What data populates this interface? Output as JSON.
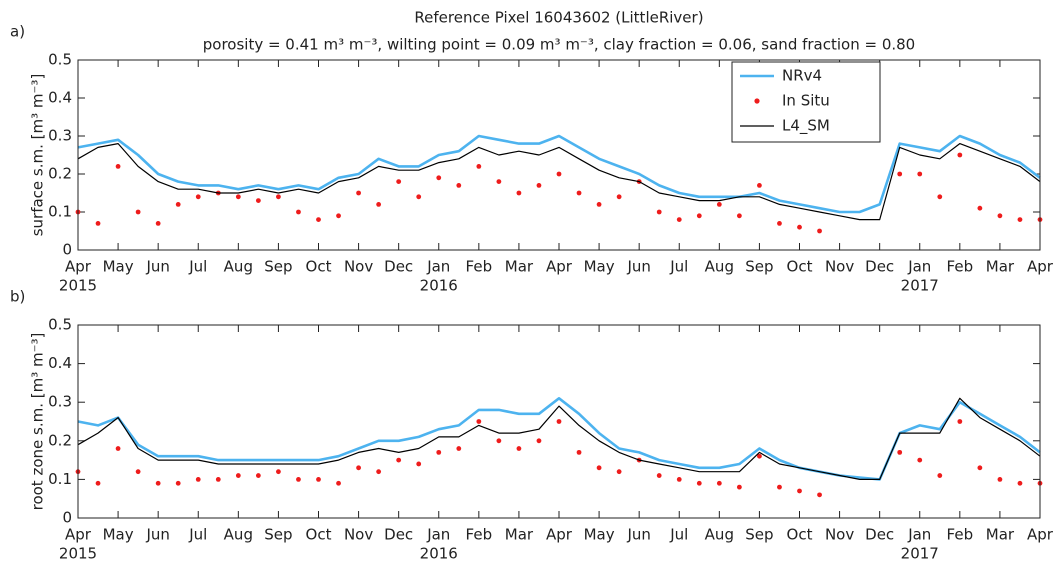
{
  "chart_data": [
    {
      "type": "line",
      "panel_label": "a)",
      "title": "Reference Pixel 16043602 (LittleRiver)",
      "subtitle": "porosity = 0.41 m³ m⁻³, wilting point = 0.09 m³ m⁻³, clay fraction = 0.06, sand fraction = 0.80",
      "y_label": "surface s.m. [m³ m⁻³]",
      "legend": "upper right",
      "x": [
        0,
        0.5,
        1,
        1.5,
        2,
        2.5,
        3,
        3.5,
        4,
        4.5,
        5,
        5.5,
        6,
        6.5,
        7,
        7.5,
        8,
        8.5,
        9,
        9.5,
        10,
        10.5,
        11,
        11.5,
        12,
        12.5,
        13,
        13.5,
        14,
        14.5,
        15,
        15.5,
        16,
        16.5,
        17,
        17.5,
        18,
        18.5,
        19,
        19.5,
        20,
        20.5,
        21,
        21.5,
        22,
        22.5,
        23,
        23.5,
        24
      ],
      "xlim": [
        0,
        24
      ],
      "xticks": [
        {
          "value": 0,
          "label": "Apr"
        },
        {
          "value": 1,
          "label": "May"
        },
        {
          "value": 2,
          "label": "Jun"
        },
        {
          "value": 3,
          "label": "Jul"
        },
        {
          "value": 4,
          "label": "Aug"
        },
        {
          "value": 5,
          "label": "Sep"
        },
        {
          "value": 6,
          "label": "Oct"
        },
        {
          "value": 7,
          "label": "Nov"
        },
        {
          "value": 8,
          "label": "Dec"
        },
        {
          "value": 9,
          "label": "Jan"
        },
        {
          "value": 10,
          "label": "Feb"
        },
        {
          "value": 11,
          "label": "Mar"
        },
        {
          "value": 12,
          "label": "Apr"
        },
        {
          "value": 13,
          "label": "May"
        },
        {
          "value": 14,
          "label": "Jun"
        },
        {
          "value": 15,
          "label": "Jul"
        },
        {
          "value": 16,
          "label": "Aug"
        },
        {
          "value": 17,
          "label": "Sep"
        },
        {
          "value": 18,
          "label": "Oct"
        },
        {
          "value": 19,
          "label": "Nov"
        },
        {
          "value": 20,
          "label": "Dec"
        },
        {
          "value": 21,
          "label": "Jan"
        },
        {
          "value": 22,
          "label": "Feb"
        },
        {
          "value": 23,
          "label": "Mar"
        },
        {
          "value": 24,
          "label": "Apr"
        }
      ],
      "xtick_years": [
        {
          "value": 0,
          "label": "2015"
        },
        {
          "value": 9,
          "label": "2016"
        },
        {
          "value": 21,
          "label": "2017"
        }
      ],
      "ylim": [
        0,
        0.5
      ],
      "yticks": [
        0,
        0.1,
        0.2,
        0.3,
        0.4,
        0.5
      ],
      "series": [
        {
          "name": "NRv4",
          "type": "line",
          "color": "#4db3ef",
          "values": [
            0.27,
            0.28,
            0.29,
            0.25,
            0.2,
            0.18,
            0.17,
            0.17,
            0.16,
            0.17,
            0.16,
            0.17,
            0.16,
            0.19,
            0.2,
            0.24,
            0.22,
            0.22,
            0.25,
            0.26,
            0.3,
            0.29,
            0.28,
            0.28,
            0.3,
            0.27,
            0.24,
            0.22,
            0.2,
            0.17,
            0.15,
            0.14,
            0.14,
            0.14,
            0.15,
            0.13,
            0.12,
            0.11,
            0.1,
            0.1,
            0.12,
            0.28,
            0.27,
            0.26,
            0.3,
            0.28,
            0.25,
            0.23,
            0.19
          ]
        },
        {
          "name": "In Situ",
          "type": "scatter",
          "color": "#ee1c1c",
          "values": [
            0.1,
            0.07,
            0.22,
            0.1,
            0.07,
            0.12,
            0.14,
            0.15,
            0.14,
            0.13,
            0.14,
            0.1,
            0.08,
            0.09,
            0.15,
            0.12,
            0.18,
            0.14,
            0.19,
            0.17,
            0.22,
            0.18,
            0.15,
            0.17,
            0.2,
            0.15,
            0.12,
            0.14,
            0.18,
            0.1,
            0.08,
            0.09,
            0.12,
            0.09,
            0.17,
            0.07,
            0.06,
            0.05,
            null,
            null,
            null,
            0.2,
            0.2,
            0.14,
            0.25,
            0.11,
            0.09,
            0.08,
            0.08
          ]
        },
        {
          "name": "L4_SM",
          "type": "line",
          "color": "#000000",
          "values": [
            0.24,
            0.27,
            0.28,
            0.22,
            0.18,
            0.16,
            0.16,
            0.15,
            0.15,
            0.16,
            0.15,
            0.16,
            0.15,
            0.18,
            0.19,
            0.22,
            0.21,
            0.21,
            0.23,
            0.24,
            0.27,
            0.25,
            0.26,
            0.25,
            0.27,
            0.24,
            0.21,
            0.19,
            0.18,
            0.15,
            0.14,
            0.13,
            0.13,
            0.14,
            0.14,
            0.12,
            0.11,
            0.1,
            0.09,
            0.08,
            0.08,
            0.27,
            0.25,
            0.24,
            0.28,
            0.26,
            0.24,
            0.22,
            0.18
          ]
        }
      ]
    },
    {
      "type": "line",
      "panel_label": "b)",
      "y_label": "root zone s.m. [m³ m⁻³]",
      "x": [
        0,
        0.5,
        1,
        1.5,
        2,
        2.5,
        3,
        3.5,
        4,
        4.5,
        5,
        5.5,
        6,
        6.5,
        7,
        7.5,
        8,
        8.5,
        9,
        9.5,
        10,
        10.5,
        11,
        11.5,
        12,
        12.5,
        13,
        13.5,
        14,
        14.5,
        15,
        15.5,
        16,
        16.5,
        17,
        17.5,
        18,
        18.5,
        19,
        19.5,
        20,
        20.5,
        21,
        21.5,
        22,
        22.5,
        23,
        23.5,
        24
      ],
      "xlim": [
        0,
        24
      ],
      "xticks": [
        {
          "value": 0,
          "label": "Apr"
        },
        {
          "value": 1,
          "label": "May"
        },
        {
          "value": 2,
          "label": "Jun"
        },
        {
          "value": 3,
          "label": "Jul"
        },
        {
          "value": 4,
          "label": "Aug"
        },
        {
          "value": 5,
          "label": "Sep"
        },
        {
          "value": 6,
          "label": "Oct"
        },
        {
          "value": 7,
          "label": "Nov"
        },
        {
          "value": 8,
          "label": "Dec"
        },
        {
          "value": 9,
          "label": "Jan"
        },
        {
          "value": 10,
          "label": "Feb"
        },
        {
          "value": 11,
          "label": "Mar"
        },
        {
          "value": 12,
          "label": "Apr"
        },
        {
          "value": 13,
          "label": "May"
        },
        {
          "value": 14,
          "label": "Jun"
        },
        {
          "value": 15,
          "label": "Jul"
        },
        {
          "value": 16,
          "label": "Aug"
        },
        {
          "value": 17,
          "label": "Sep"
        },
        {
          "value": 18,
          "label": "Oct"
        },
        {
          "value": 19,
          "label": "Nov"
        },
        {
          "value": 20,
          "label": "Dec"
        },
        {
          "value": 21,
          "label": "Jan"
        },
        {
          "value": 22,
          "label": "Feb"
        },
        {
          "value": 23,
          "label": "Mar"
        },
        {
          "value": 24,
          "label": "Apr"
        }
      ],
      "xtick_years": [
        {
          "value": 0,
          "label": "2015"
        },
        {
          "value": 9,
          "label": "2016"
        },
        {
          "value": 21,
          "label": "2017"
        }
      ],
      "ylim": [
        0,
        0.5
      ],
      "yticks": [
        0,
        0.1,
        0.2,
        0.3,
        0.4,
        0.5
      ],
      "series": [
        {
          "name": "NRv4",
          "type": "line",
          "color": "#4db3ef",
          "values": [
            0.25,
            0.24,
            0.26,
            0.19,
            0.16,
            0.16,
            0.16,
            0.15,
            0.15,
            0.15,
            0.15,
            0.15,
            0.15,
            0.16,
            0.18,
            0.2,
            0.2,
            0.21,
            0.23,
            0.24,
            0.28,
            0.28,
            0.27,
            0.27,
            0.31,
            0.27,
            0.22,
            0.18,
            0.17,
            0.15,
            0.14,
            0.13,
            0.13,
            0.14,
            0.18,
            0.15,
            0.13,
            0.12,
            0.11,
            0.105,
            0.1,
            0.22,
            0.24,
            0.23,
            0.3,
            0.27,
            0.24,
            0.21,
            0.17
          ]
        },
        {
          "name": "In Situ",
          "type": "scatter",
          "color": "#ee1c1c",
          "values": [
            0.12,
            0.09,
            0.18,
            0.12,
            0.09,
            0.09,
            0.1,
            0.1,
            0.11,
            0.11,
            0.12,
            0.1,
            0.1,
            0.09,
            0.13,
            0.12,
            0.15,
            0.14,
            0.17,
            0.18,
            0.25,
            0.2,
            0.18,
            0.2,
            0.25,
            0.17,
            0.13,
            0.12,
            0.15,
            0.11,
            0.1,
            0.09,
            0.09,
            0.08,
            0.16,
            0.08,
            0.07,
            0.06,
            null,
            null,
            null,
            0.17,
            0.15,
            0.11,
            0.25,
            0.13,
            0.1,
            0.09,
            0.09
          ]
        },
        {
          "name": "L4_SM",
          "type": "line",
          "color": "#000000",
          "values": [
            0.19,
            0.22,
            0.26,
            0.18,
            0.15,
            0.15,
            0.15,
            0.14,
            0.14,
            0.14,
            0.14,
            0.14,
            0.14,
            0.15,
            0.17,
            0.18,
            0.17,
            0.18,
            0.21,
            0.21,
            0.24,
            0.22,
            0.22,
            0.23,
            0.29,
            0.24,
            0.2,
            0.17,
            0.15,
            0.14,
            0.13,
            0.12,
            0.12,
            0.12,
            0.17,
            0.14,
            0.13,
            0.12,
            0.11,
            0.1,
            0.1,
            0.22,
            0.22,
            0.22,
            0.31,
            0.26,
            0.23,
            0.2,
            0.16
          ]
        }
      ]
    }
  ]
}
